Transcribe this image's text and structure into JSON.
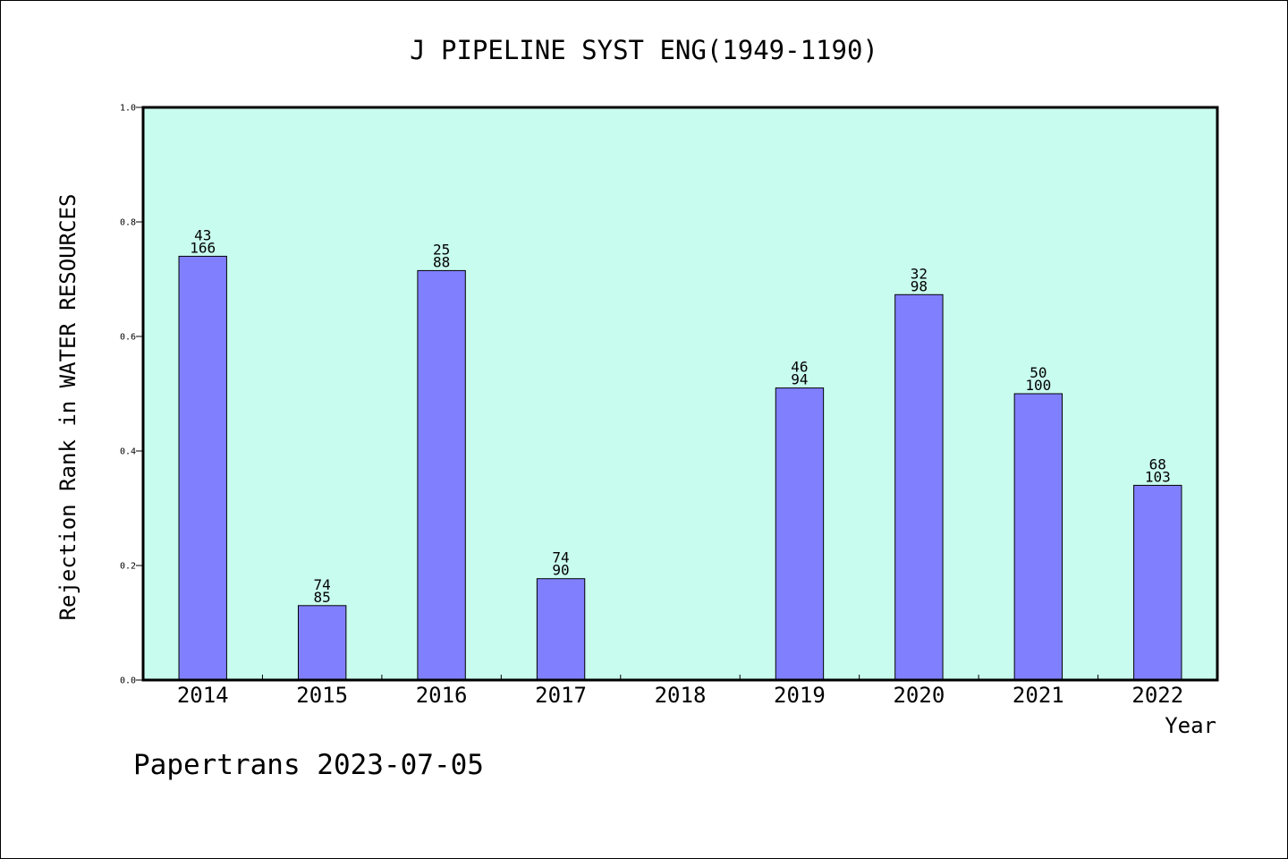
{
  "chart_data": {
    "type": "bar",
    "title": "J PIPELINE SYST ENG(1949-1190)",
    "xlabel": "Year",
    "ylabel": "Rejection Rank in WATER RESOURCES",
    "ylim": [
      0.0,
      1.0
    ],
    "yticks": [
      "0.0",
      "0.2",
      "0.4",
      "0.6",
      "0.8",
      "1.0"
    ],
    "categories": [
      "2014",
      "2015",
      "2016",
      "2017",
      "2018",
      "2019",
      "2020",
      "2021",
      "2022"
    ],
    "values": [
      0.74,
      0.13,
      0.715,
      0.177,
      null,
      0.51,
      0.673,
      0.5,
      0.34
    ],
    "labels_top": [
      "43",
      "74",
      "25",
      "74",
      "",
      "46",
      "32",
      "50",
      "68"
    ],
    "labels_bottom": [
      "166",
      "85",
      "88",
      "90",
      "",
      "94",
      "98",
      "100",
      "103"
    ],
    "grid": false,
    "legend": "none"
  },
  "colors": {
    "plot_background": "#c8fcee",
    "bar_fill": "#8080ff",
    "bar_stroke": "#000000",
    "axis": "#000000",
    "text": "#000000"
  },
  "footer": {
    "text": "Papertrans 2023-07-05"
  }
}
